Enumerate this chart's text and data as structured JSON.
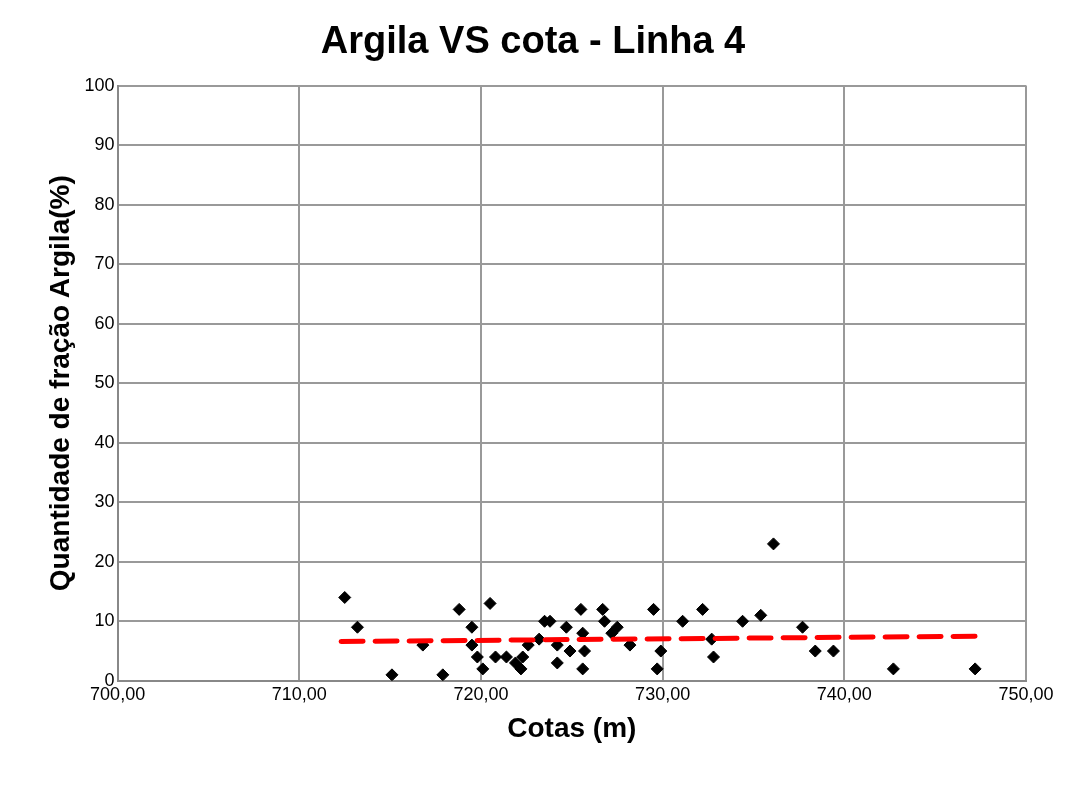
{
  "chart_data": {
    "type": "scatter",
    "title": "Argila VS cota - Linha 4",
    "xlabel": "Cotas (m)",
    "ylabel": "Quantidade de fração Argila(%)",
    "xlim": [
      700,
      750
    ],
    "xticks": [
      {
        "value": 700,
        "label": "700,00"
      },
      {
        "value": 710,
        "label": "710,00"
      },
      {
        "value": 720,
        "label": "720,00"
      },
      {
        "value": 730,
        "label": "730,00"
      },
      {
        "value": 740,
        "label": "740,00"
      },
      {
        "value": 750,
        "label": "750,00"
      }
    ],
    "ylim": [
      0,
      100
    ],
    "yticks": [
      0,
      10,
      20,
      30,
      40,
      50,
      60,
      70,
      80,
      90,
      100
    ],
    "grid": true,
    "legend": false,
    "series": [
      {
        "color": "#000000",
        "marker": "diamond",
        "x": [
          712.5,
          713.2,
          715.1,
          716.8,
          717.9,
          718.8,
          719.5,
          719.5,
          719.8,
          720.1,
          720.5,
          720.8,
          721.4,
          721.9,
          722.2,
          722.3,
          722.6,
          723.2,
          723.5,
          723.8,
          724.2,
          724.2,
          724.7,
          724.9,
          725.5,
          725.6,
          725.6,
          725.7,
          726.7,
          726.8,
          727.2,
          727.5,
          728.2,
          729.5,
          729.7,
          729.9,
          731.1,
          732.2,
          732.7,
          732.8,
          734.4,
          735.4,
          736.1,
          737.7,
          738.4,
          739.4,
          742.7,
          747.2
        ],
        "values": [
          14,
          9,
          1,
          6,
          1,
          12,
          9,
          6,
          4,
          2,
          13,
          4,
          4,
          3,
          2,
          4,
          6,
          7,
          10,
          10,
          3,
          6,
          9,
          5,
          12,
          8,
          2,
          5,
          12,
          10,
          8,
          9,
          6,
          12,
          2,
          5,
          10,
          12,
          7,
          4,
          10,
          11,
          23,
          9,
          5,
          5,
          2,
          2
        ]
      },
      {
        "type": "line",
        "color": "#ff0000",
        "marker": "none",
        "line_style": "dashed",
        "x": [
          712.3,
          747.5
        ],
        "values": [
          6.6,
          7.5
        ]
      }
    ]
  }
}
